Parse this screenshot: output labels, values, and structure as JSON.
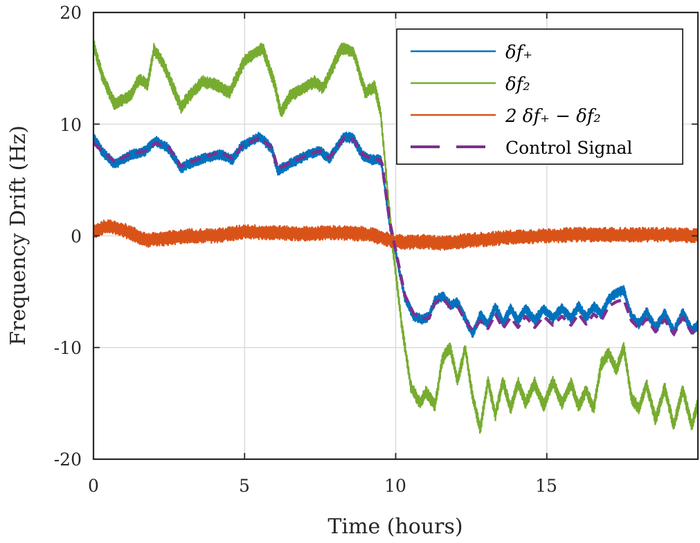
{
  "chart_data": {
    "type": "line",
    "title": "",
    "xlabel": "Time (hours)",
    "ylabel": "Frequency Drift (Hz)",
    "xlim": [
      0,
      20
    ],
    "ylim": [
      -20,
      20
    ],
    "xticks": [
      0,
      5,
      10,
      15
    ],
    "xtick_labels": [
      "0",
      "5",
      "10",
      "15"
    ],
    "yticks": [
      20,
      10,
      0,
      -10,
      -20
    ],
    "ytick_labels": [
      "20",
      "10",
      "0",
      "-10",
      "-20"
    ],
    "grid": true,
    "legend_position": "top-right",
    "series": [
      {
        "name": "δf+",
        "legend_label": "δf₊",
        "color": "#0072BD",
        "style": "solid",
        "noise_band": 0.9,
        "x": [
          0,
          0.3,
          0.7,
          1.2,
          1.7,
          2.05,
          2.5,
          2.9,
          3.1,
          3.6,
          4.2,
          4.6,
          4.9,
          5.5,
          5.9,
          6.1,
          6.4,
          7.2,
          7.5,
          7.8,
          8.3,
          8.6,
          8.9,
          9.2,
          9.5,
          9.55,
          9.8,
          10.0,
          10.3,
          10.6,
          10.9,
          11.1,
          11.3,
          11.55,
          11.8,
          12.05,
          12.3,
          12.55,
          12.8,
          13.05,
          13.3,
          13.55,
          13.8,
          14.05,
          14.3,
          14.6,
          14.9,
          15.2,
          15.5,
          15.8,
          16.05,
          16.3,
          16.55,
          16.8,
          17.05,
          17.3,
          17.55,
          17.8,
          18.05,
          18.3,
          18.6,
          18.9,
          19.2,
          19.5,
          19.8,
          20.0
        ],
        "y": [
          8.8,
          7.5,
          6.4,
          7.2,
          7.6,
          8.5,
          7.8,
          6.0,
          6.4,
          6.9,
          7.3,
          6.8,
          8.0,
          8.9,
          7.8,
          5.8,
          6.3,
          7.4,
          7.6,
          6.9,
          8.9,
          8.7,
          7.2,
          6.8,
          6.8,
          6.2,
          1.0,
          -1.5,
          -5.5,
          -7.2,
          -7.5,
          -7.2,
          -5.8,
          -5.4,
          -6.2,
          -6.0,
          -7.4,
          -8.8,
          -7.1,
          -8.0,
          -6.3,
          -7.8,
          -6.5,
          -7.6,
          -6.5,
          -7.6,
          -6.5,
          -7.4,
          -6.5,
          -7.4,
          -6.3,
          -7.3,
          -6.3,
          -7.0,
          -5.7,
          -5.1,
          -4.9,
          -7.2,
          -7.9,
          -6.8,
          -8.3,
          -6.9,
          -8.6,
          -6.9,
          -8.5,
          -8.0
        ]
      },
      {
        "name": "δf2",
        "legend_label": "δf₂",
        "color": "#77AC30",
        "style": "solid",
        "noise_band": 1.1,
        "x": [
          0,
          0.3,
          0.7,
          1.2,
          1.5,
          1.8,
          2.0,
          2.3,
          2.9,
          3.1,
          3.6,
          4.1,
          4.5,
          5.0,
          5.6,
          6.0,
          6.2,
          6.5,
          7.3,
          7.6,
          8.2,
          8.6,
          9.0,
          9.3,
          9.5,
          9.9,
          10.2,
          10.5,
          10.8,
          11.0,
          11.3,
          11.55,
          11.8,
          12.05,
          12.3,
          12.55,
          12.8,
          13.05,
          13.3,
          13.55,
          13.8,
          14.05,
          14.3,
          14.6,
          14.9,
          15.2,
          15.5,
          15.8,
          16.05,
          16.3,
          16.55,
          16.8,
          17.05,
          17.3,
          17.55,
          17.8,
          18.05,
          18.3,
          18.6,
          18.9,
          19.2,
          19.5,
          19.8,
          20.0
        ],
        "y": [
          17.2,
          14.2,
          11.8,
          12.5,
          14.0,
          13.6,
          16.7,
          15.5,
          11.5,
          12.3,
          13.8,
          13.5,
          12.8,
          15.7,
          16.8,
          13.5,
          11.0,
          12.5,
          13.8,
          13.2,
          16.8,
          16.5,
          12.8,
          13.4,
          11.0,
          -1.0,
          -8.0,
          -13.5,
          -15.0,
          -14.0,
          -15.2,
          -11.0,
          -10.0,
          -13.0,
          -10.0,
          -14.5,
          -17.3,
          -13.0,
          -16.0,
          -13.0,
          -15.5,
          -13.2,
          -15.0,
          -13.2,
          -15.2,
          -13.0,
          -15.0,
          -13.2,
          -15.3,
          -13.8,
          -15.5,
          -11.5,
          -10.5,
          -12.0,
          -10.0,
          -14.5,
          -15.5,
          -13.3,
          -16.5,
          -13.6,
          -17.0,
          -13.8,
          -17.0,
          -15.0
        ]
      },
      {
        "name": "2δf+ − δf2",
        "legend_label": "2 δf₊ − δf₂",
        "color": "#D95319",
        "style": "solid",
        "noise_band": 1.3,
        "x": [
          0,
          0.4,
          0.8,
          1.2,
          1.6,
          1.8,
          2.5,
          3.2,
          4.0,
          4.6,
          5.0,
          5.5,
          6.0,
          6.6,
          7.2,
          8.0,
          8.6,
          9.0,
          9.6,
          10.0,
          10.4,
          11.0,
          11.4,
          11.8,
          12.4,
          13.0,
          14.0,
          15.0,
          16.0,
          17.0,
          18.0,
          19.0,
          20.0
        ],
        "y": [
          0.4,
          0.8,
          0.7,
          0.3,
          -0.2,
          -0.4,
          -0.2,
          0.0,
          0.0,
          0.2,
          0.4,
          0.3,
          0.3,
          0.2,
          0.2,
          0.3,
          0.2,
          0.2,
          -0.2,
          -0.5,
          -0.6,
          -0.5,
          -0.7,
          -0.6,
          -0.4,
          -0.3,
          -0.1,
          0.0,
          0.1,
          0.1,
          0.1,
          0.1,
          0.0
        ]
      },
      {
        "name": "Control Signal",
        "legend_label": "Control Signal",
        "color": "#7E2F8E",
        "style": "dashed",
        "noise_band": 0,
        "x": [
          0,
          0.3,
          0.7,
          1.2,
          1.7,
          2.05,
          2.5,
          2.9,
          3.1,
          3.6,
          4.2,
          4.6,
          4.9,
          5.5,
          5.9,
          6.1,
          6.4,
          7.2,
          7.5,
          7.8,
          8.3,
          8.6,
          8.9,
          9.2,
          9.5,
          9.55,
          9.8,
          10.0,
          10.3,
          10.6,
          10.9,
          11.1,
          11.3,
          11.55,
          11.8,
          12.05,
          12.3,
          12.55,
          12.8,
          13.05,
          13.3,
          13.55,
          13.8,
          14.05,
          14.3,
          14.6,
          14.9,
          15.2,
          15.5,
          15.8,
          16.05,
          16.3,
          16.55,
          16.8,
          17.05,
          17.3,
          17.55,
          17.8,
          18.05,
          18.3,
          18.6,
          18.9,
          19.2,
          19.5,
          19.8,
          20.0
        ],
        "y": [
          8.3,
          7.6,
          6.6,
          7.3,
          7.6,
          8.3,
          7.9,
          6.2,
          6.5,
          7.0,
          7.5,
          6.9,
          8.0,
          8.8,
          7.9,
          6.0,
          6.4,
          7.4,
          7.6,
          7.0,
          8.8,
          8.6,
          7.3,
          6.9,
          6.8,
          6.4,
          1.3,
          -1.3,
          -5.3,
          -7.0,
          -7.4,
          -7.4,
          -6.0,
          -5.5,
          -6.4,
          -6.3,
          -7.6,
          -8.5,
          -7.6,
          -8.3,
          -7.0,
          -8.3,
          -7.3,
          -8.2,
          -7.2,
          -8.2,
          -7.2,
          -8.0,
          -7.2,
          -8.0,
          -7.0,
          -7.9,
          -7.0,
          -7.6,
          -6.3,
          -5.9,
          -5.7,
          -7.6,
          -8.3,
          -7.4,
          -8.6,
          -7.5,
          -8.8,
          -7.3,
          -8.7,
          -8.2
        ]
      }
    ]
  }
}
